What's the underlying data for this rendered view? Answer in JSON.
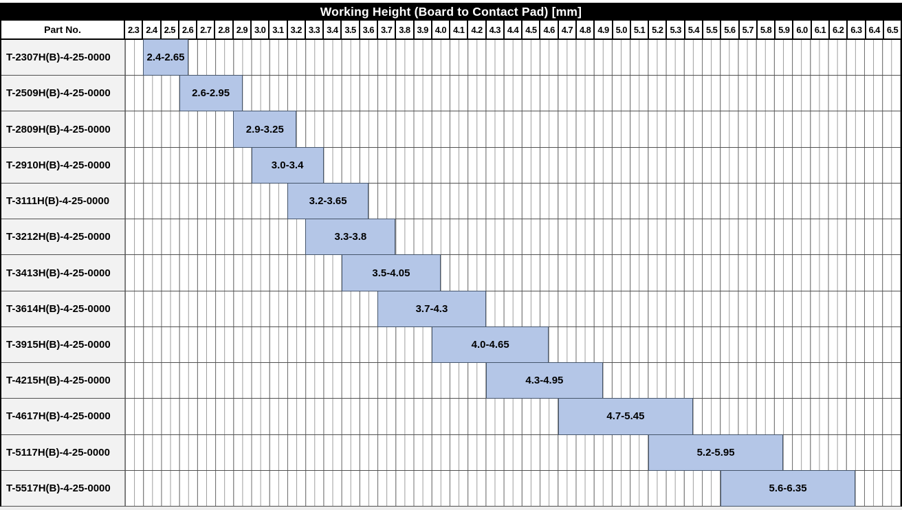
{
  "title": "Working Height (Board to Contact Pad) [mm]",
  "header": {
    "part_no_label": "Part No."
  },
  "chart_data": {
    "type": "bar",
    "subtype": "horizontal-range-gantt",
    "title": "Working Height (Board to Contact Pad) [mm]",
    "legend": "none",
    "grid": "on",
    "axis": {
      "min": 2.3,
      "max": 6.6,
      "major_step": 0.1,
      "minor_step": 0.05,
      "tick_labels": [
        "2.3",
        "2.4",
        "2.5",
        "2.6",
        "2.7",
        "2.8",
        "2.9",
        "3.0",
        "3.1",
        "3.2",
        "3.3",
        "3.4",
        "3.5",
        "3.6",
        "3.7",
        "3.8",
        "3.9",
        "4.0",
        "4.1",
        "4.2",
        "4.3",
        "4.4",
        "4.5",
        "4.6",
        "4.7",
        "4.8",
        "4.9",
        "5.0",
        "5.1",
        "5.2",
        "5.3",
        "5.4",
        "5.5",
        "5.6",
        "5.7",
        "5.8",
        "5.9",
        "6.0",
        "6.1",
        "6.2",
        "6.3",
        "6.4",
        "6.5"
      ]
    },
    "rows": [
      {
        "part_no": "T-2307H(B)-4-25-0000",
        "start": 2.4,
        "end": 2.65,
        "label": "2.4-2.65"
      },
      {
        "part_no": "T-2509H(B)-4-25-0000",
        "start": 2.6,
        "end": 2.95,
        "label": "2.6-2.95"
      },
      {
        "part_no": "T-2809H(B)-4-25-0000",
        "start": 2.9,
        "end": 3.25,
        "label": "2.9-3.25"
      },
      {
        "part_no": "T-2910H(B)-4-25-0000",
        "start": 3.0,
        "end": 3.4,
        "label": "3.0-3.4"
      },
      {
        "part_no": "T-3111H(B)-4-25-0000",
        "start": 3.2,
        "end": 3.65,
        "label": "3.2-3.65"
      },
      {
        "part_no": "T-3212H(B)-4-25-0000",
        "start": 3.3,
        "end": 3.8,
        "label": "3.3-3.8"
      },
      {
        "part_no": "T-3413H(B)-4-25-0000",
        "start": 3.5,
        "end": 4.05,
        "label": "3.5-4.05"
      },
      {
        "part_no": "T-3614H(B)-4-25-0000",
        "start": 3.7,
        "end": 4.3,
        "label": "3.7-4.3"
      },
      {
        "part_no": "T-3915H(B)-4-25-0000",
        "start": 4.0,
        "end": 4.65,
        "label": "4.0-4.65"
      },
      {
        "part_no": "T-4215H(B)-4-25-0000",
        "start": 4.3,
        "end": 4.95,
        "label": "4.3-4.95"
      },
      {
        "part_no": "T-4617H(B)-4-25-0000",
        "start": 4.7,
        "end": 5.45,
        "label": "4.7-5.45"
      },
      {
        "part_no": "T-5117H(B)-4-25-0000",
        "start": 5.2,
        "end": 5.95,
        "label": "5.2-5.95"
      },
      {
        "part_no": "T-5517H(B)-4-25-0000",
        "start": 5.6,
        "end": 6.35,
        "label": "5.6-6.35"
      }
    ],
    "colors": {
      "bar_fill": "#b4c6e7",
      "bar_border": "#44546a",
      "row_label_bg": "#f2f2f2",
      "title_bg": "#000000",
      "title_fg": "#ffffff",
      "grid_line": "#9a9a9a"
    }
  }
}
